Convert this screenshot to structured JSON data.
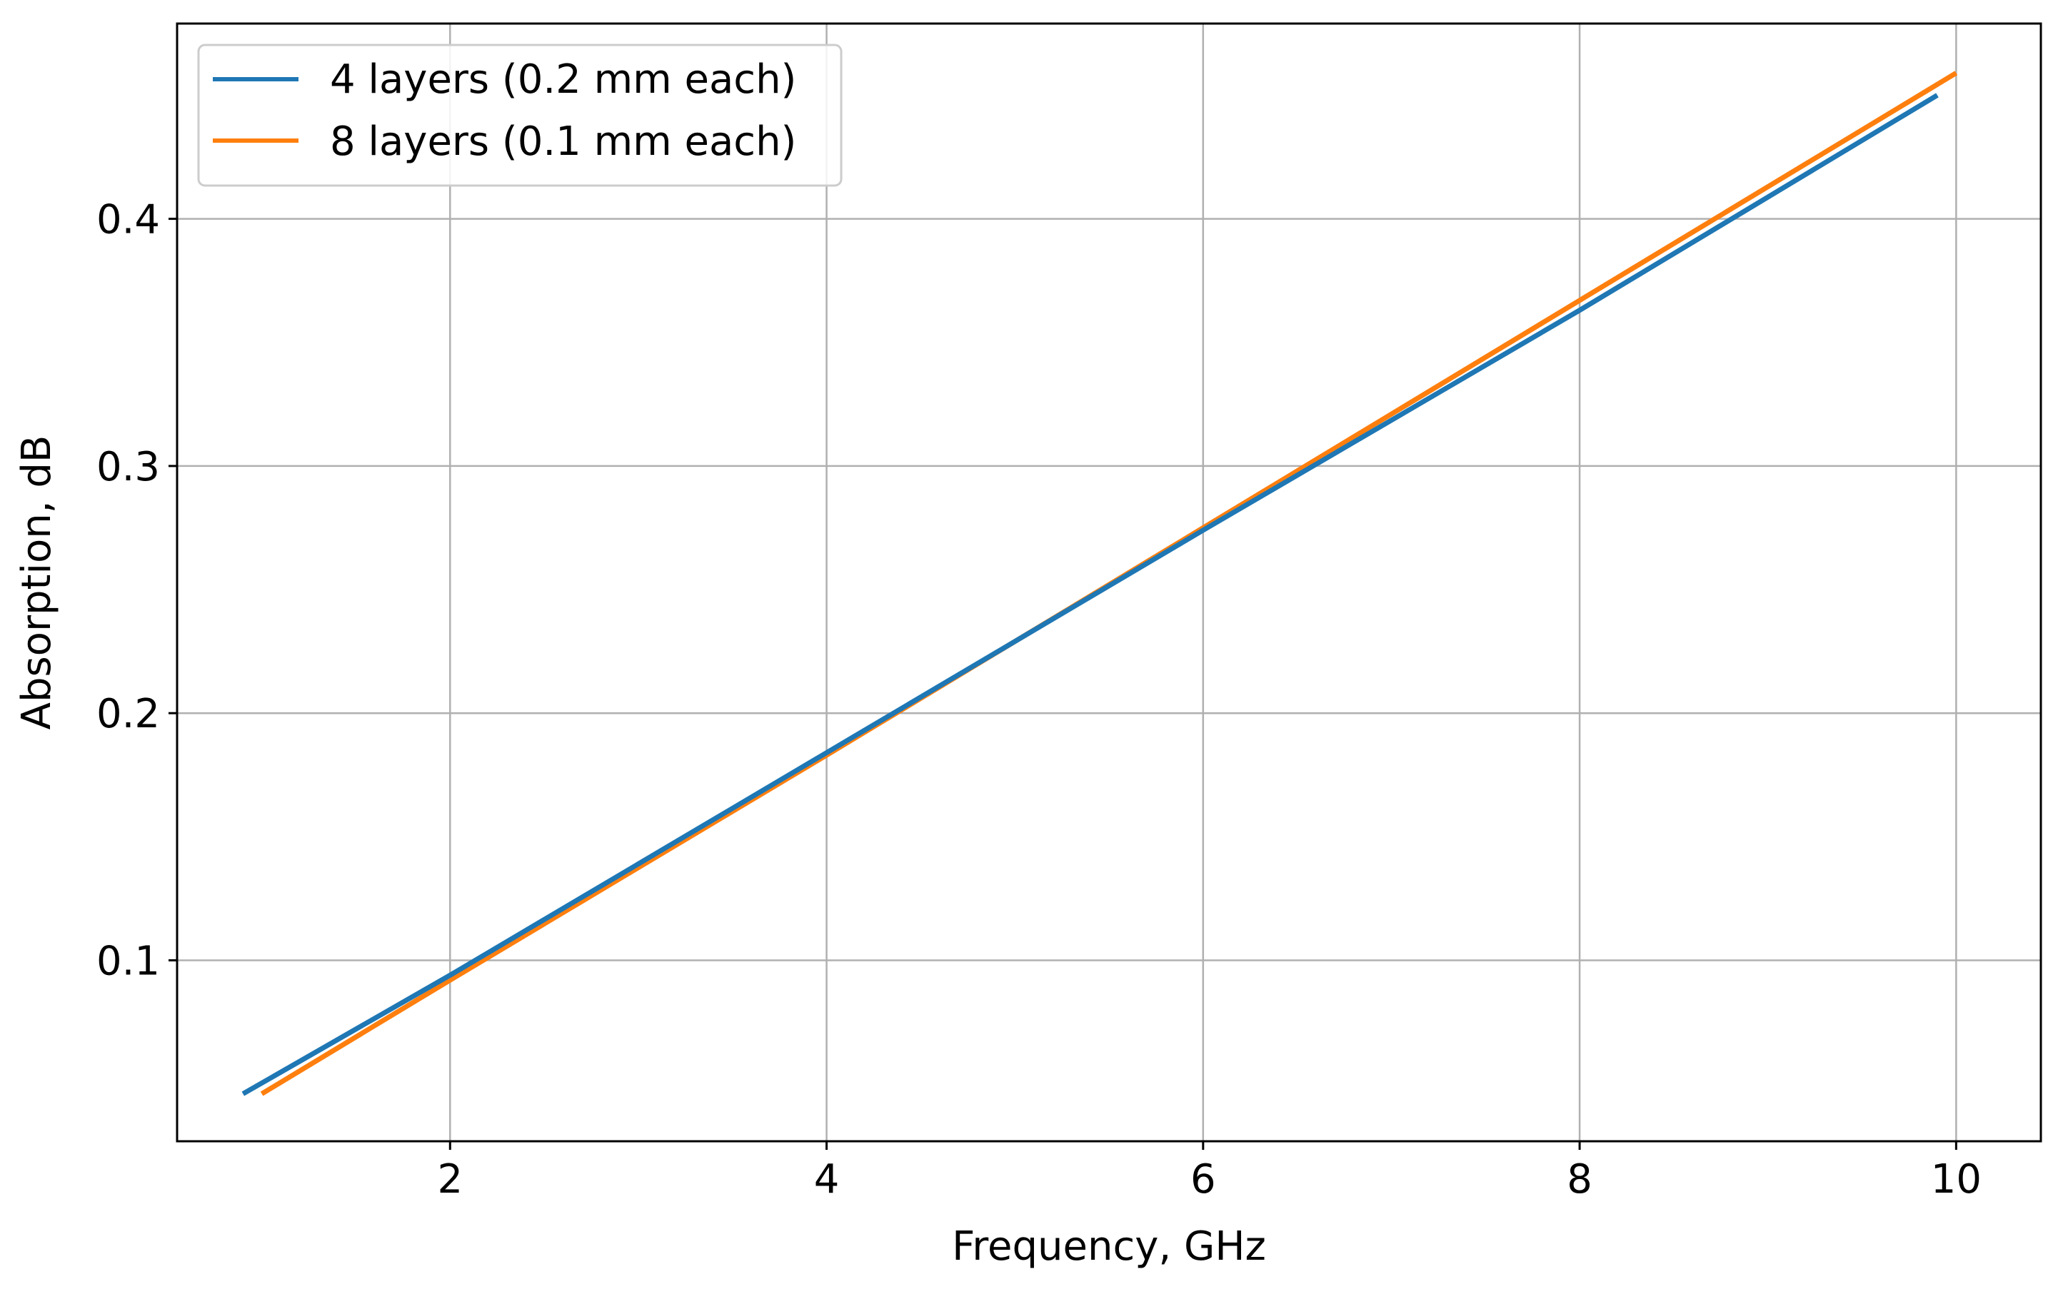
{
  "chart_data": {
    "type": "line",
    "title": "",
    "xlabel": "Frequency, GHz",
    "ylabel": "Absorption, dB",
    "xlim": [
      0.55,
      10.45
    ],
    "ylim": [
      0.0268,
      0.479
    ],
    "xticks": [
      2,
      4,
      6,
      8,
      10
    ],
    "xtick_labels": [
      "2",
      "4",
      "6",
      "8",
      "10"
    ],
    "yticks": [
      0.1,
      0.2,
      0.3,
      0.4
    ],
    "ytick_labels": [
      "0.1",
      "0.2",
      "0.3",
      "0.4"
    ],
    "grid": true,
    "legend_position": "top-left",
    "series": [
      {
        "name": "4 layers (0.2 mm each)",
        "color": "#1f77b4",
        "x": [
          0.9,
          2,
          4,
          6,
          8,
          9.9
        ],
        "y": [
          0.046,
          0.094,
          0.184,
          0.274,
          0.363,
          0.45
        ]
      },
      {
        "name": "8 layers (0.1 mm each)",
        "color": "#ff7f0e",
        "x": [
          1.0,
          2,
          4,
          6,
          8,
          10.0
        ],
        "y": [
          0.046,
          0.092,
          0.183,
          0.275,
          0.367,
          0.459
        ]
      }
    ]
  }
}
